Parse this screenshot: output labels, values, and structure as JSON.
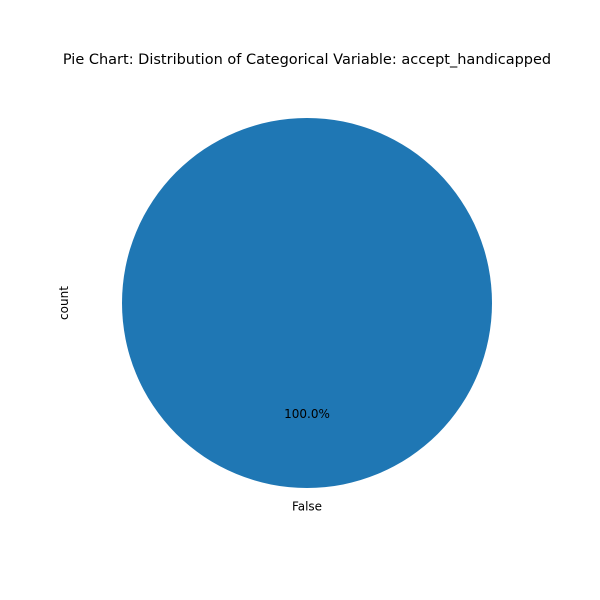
{
  "chart_data": {
    "type": "pie",
    "title": "Pie Chart: Distribution of Categorical Variable: accept_handicapped",
    "ylabel": "count",
    "categories": [
      "False"
    ],
    "values": [
      100.0
    ],
    "percent_labels": [
      "100.0%"
    ],
    "colors": [
      "#1f77b4"
    ],
    "legend": "none"
  }
}
